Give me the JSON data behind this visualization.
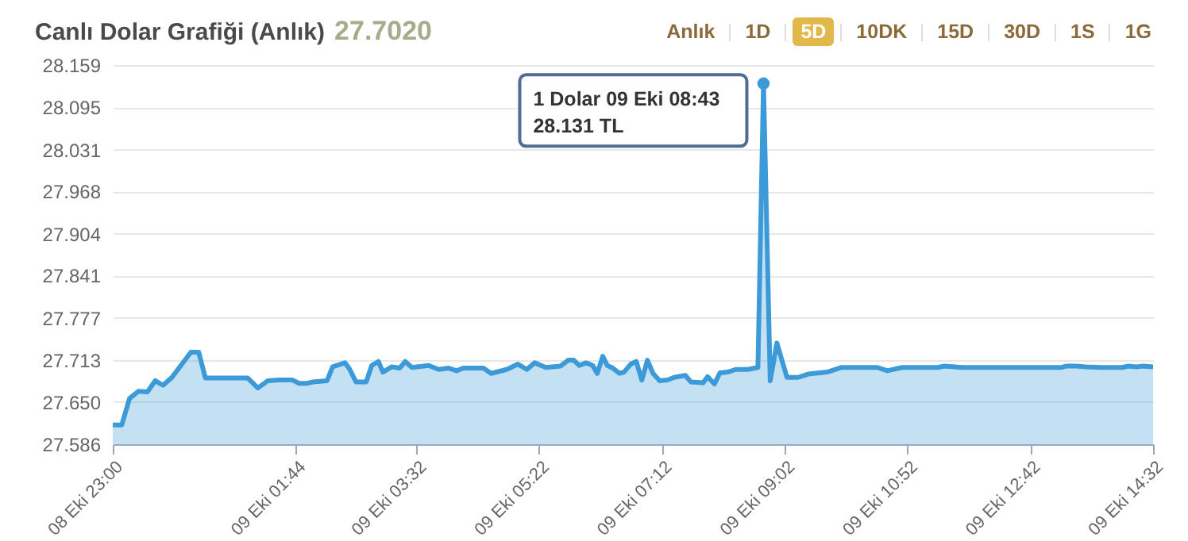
{
  "chart_data": {
    "type": "area",
    "title": "Canlı Dolar Grafiği (Anlık)",
    "subtitle": "27.7020",
    "x": [
      "--10-08T23:00",
      "--10-08T23:08",
      "--10-08T23:15",
      "--10-08T23:23",
      "--10-08T23:31",
      "--10-08T23:38",
      "--10-08T23:45",
      "--10-08T23:53",
      "--10-09T00:10",
      "--10-09T00:17",
      "--10-09T00:23",
      "--10-09T01:01",
      "--10-09T01:10",
      "--10-09T01:19",
      "--10-09T01:29",
      "--10-09T01:41",
      "--10-09T01:47",
      "--10-09T01:54",
      "--10-09T01:59",
      "--10-09T02:12",
      "--10-09T02:17",
      "--10-09T02:28",
      "--10-09T02:32",
      "--10-09T02:38",
      "--10-09T02:47",
      "--10-09T02:52",
      "--10-09T02:58",
      "--10-09T03:02",
      "--10-09T03:10",
      "--10-09T03:17",
      "--10-09T03:22",
      "--10-09T03:28",
      "--10-09T03:43",
      "--10-09T03:52",
      "--10-09T04:01",
      "--10-09T04:08",
      "--10-09T04:14",
      "--10-09T04:32",
      "--10-09T04:39",
      "--10-09T04:53",
      "--10-09T05:03",
      "--10-09T05:11",
      "--10-09T05:18",
      "--10-09T05:28",
      "--10-09T05:41",
      "--10-09T05:48",
      "--10-09T05:53",
      "--10-09T05:58",
      "--10-09T06:04",
      "--10-09T06:10",
      "--10-09T06:14",
      "--10-09T06:19",
      "--10-09T06:23",
      "--10-09T06:28",
      "--10-09T06:34",
      "--10-09T06:38",
      "--10-09T06:44",
      "--10-09T06:49",
      "--10-09T06:54",
      "--10-09T06:59",
      "--10-09T07:04",
      "--10-09T07:10",
      "--10-09T07:17",
      "--10-09T07:23",
      "--10-09T07:33",
      "--10-09T07:38",
      "--10-09T07:49",
      "--10-09T07:53",
      "--10-09T07:59",
      "--10-09T08:04",
      "--10-09T08:11",
      "--10-09T08:18",
      "--10-09T08:29",
      "--10-09T08:38",
      "--10-09T08:43",
      "--10-09T08:49",
      "--10-09T08:55",
      "--10-09T09:04",
      "--10-09T09:14",
      "--10-09T09:23",
      "--10-09T09:40",
      "--10-09T09:53",
      "--10-09T10:25",
      "--10-09T10:34",
      "--10-09T10:47",
      "--10-09T11:19",
      "--10-09T11:25",
      "--10-09T11:41",
      "--10-09T13:10",
      "--10-09T13:14",
      "--10-09T13:23",
      "--10-09T13:32",
      "--10-09T13:46",
      "--10-09T14:04",
      "--10-09T14:10",
      "--10-09T14:17",
      "--10-09T14:23",
      "--10-09T14:32"
    ],
    "series": [
      {
        "color": "#3d9ad8",
        "values": [
          27.615,
          27.615,
          27.655,
          27.666,
          27.665,
          27.682,
          27.675,
          27.687,
          27.725,
          27.725,
          27.686,
          27.686,
          27.671,
          27.682,
          27.683,
          27.683,
          27.678,
          27.678,
          27.68,
          27.682,
          27.703,
          27.709,
          27.7,
          27.68,
          27.68,
          27.705,
          27.711,
          27.695,
          27.703,
          27.701,
          27.711,
          27.702,
          27.705,
          27.699,
          27.701,
          27.697,
          27.701,
          27.701,
          27.693,
          27.699,
          27.707,
          27.699,
          27.709,
          27.702,
          27.704,
          27.713,
          27.713,
          27.705,
          27.709,
          27.705,
          27.693,
          27.719,
          27.705,
          27.701,
          27.693,
          27.695,
          27.707,
          27.711,
          27.683,
          27.713,
          27.693,
          27.682,
          27.683,
          27.687,
          27.69,
          27.68,
          27.679,
          27.688,
          27.677,
          27.694,
          27.695,
          27.699,
          27.699,
          27.702,
          28.131,
          27.682,
          27.739,
          27.687,
          27.687,
          27.692,
          27.695,
          27.702,
          27.702,
          27.697,
          27.702,
          27.702,
          27.704,
          27.702,
          27.702,
          27.704,
          27.704,
          27.703,
          27.702,
          27.702,
          27.704,
          27.703,
          27.704,
          27.703
        ]
      }
    ],
    "xlim": [
      "--10-08T23:00",
      "--10-09T14:32"
    ],
    "xticks": [
      {
        "value": "--10-08T23:00",
        "label": "08 Eki 23:00"
      },
      {
        "value": "--10-09T01:44",
        "label": "09 Eki 01:44"
      },
      {
        "value": "--10-09T03:32",
        "label": "09 Eki 03:32"
      },
      {
        "value": "--10-09T05:22",
        "label": "09 Eki 05:22"
      },
      {
        "value": "--10-09T07:12",
        "label": "09 Eki 07:12"
      },
      {
        "value": "--10-09T09:02",
        "label": "09 Eki 09:02"
      },
      {
        "value": "--10-09T10:52",
        "label": "09 Eki 10:52"
      },
      {
        "value": "--10-09T12:42",
        "label": "09 Eki 12:42"
      },
      {
        "value": "--10-09T14:32",
        "label": "09 Eki 14:32"
      }
    ],
    "ylim": [
      27.586,
      28.159
    ],
    "yticks": [
      27.586,
      {
        "value": 27.65,
        "label": "27.650"
      },
      27.713,
      27.777,
      27.841,
      27.904,
      27.968,
      28.031,
      28.095,
      28.159
    ],
    "grid": "y",
    "marker": "none",
    "annotations": [
      {
        "text": "1 Dolar 09 Eki 08:43\n28.131 TL",
        "x": "--10-09T08:43",
        "y": 28.131
      },
      "Anlık",
      "1D",
      "5D",
      "10DK",
      "15D",
      "30D",
      "1S",
      "1G"
    ]
  }
}
